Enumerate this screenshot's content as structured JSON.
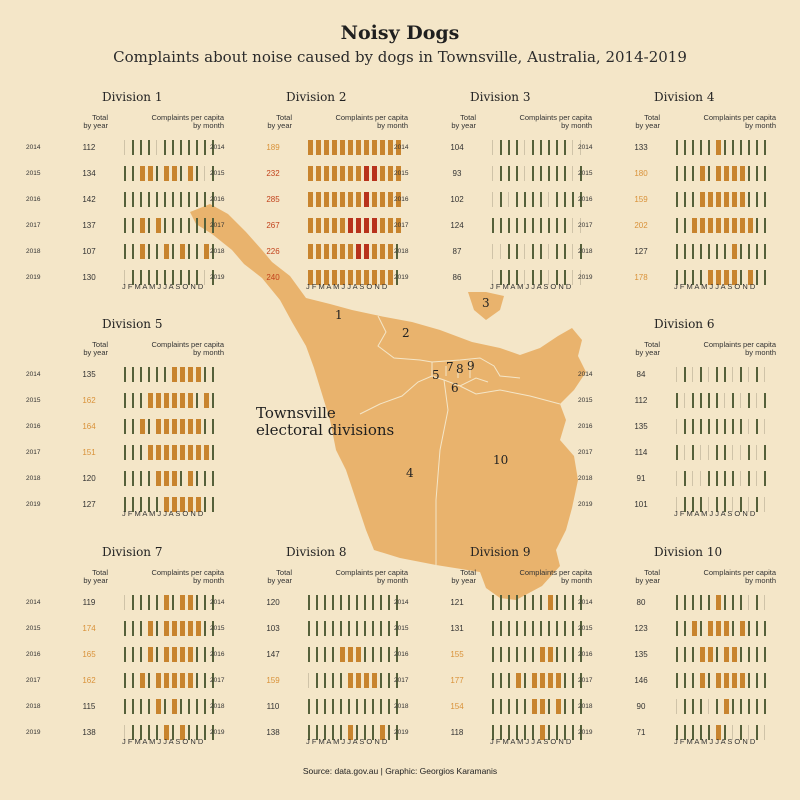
{
  "title": "Noisy Dogs",
  "subtitle": "Complaints about noise caused by dogs in Townsville, Australia, 2014-2019",
  "map_title_lines": [
    "Townsville",
    "electoral divisions"
  ],
  "source": "Source: data.gov.au | Graphic: Georgios Karamanis",
  "headers": {
    "total_line1": "Total",
    "total_line2": "by year",
    "rate_line1": "Complaints per capita",
    "rate_line2": "by month"
  },
  "month_axis": "J F M A M J J A S O N D",
  "colors": {
    "background": "#f4e6c8",
    "map_fill": "#e9b36d",
    "low": "#55603a",
    "mid": "#c8842e",
    "high": "#b8321c",
    "faint": "#cfc3a8",
    "total_normal": "#333333",
    "total_elevated": "#d9923a",
    "total_high": "#c2421c"
  },
  "chart_data": {
    "type": "heatmap",
    "x": [
      "J",
      "F",
      "M",
      "A",
      "M",
      "J",
      "J",
      "A",
      "S",
      "O",
      "N",
      "D"
    ],
    "years": [
      "2014",
      "2015",
      "2016",
      "2017",
      "2018",
      "2019"
    ],
    "legend_levels": [
      "low",
      "mid",
      "high"
    ],
    "divisions": [
      {
        "name": "Division 1",
        "label": "1",
        "totals": [
          112,
          134,
          142,
          137,
          107,
          130
        ],
        "total_levels": [
          "n",
          "n",
          "n",
          "n",
          "n",
          "n"
        ],
        "levels": [
          "011101111111",
          "112212212101",
          "111111111111",
          "112121111111",
          "112112121121",
          "011111111101"
        ]
      },
      {
        "name": "Division 2",
        "label": "2",
        "totals": [
          189,
          232,
          285,
          267,
          226,
          240
        ],
        "total_levels": [
          "e",
          "h",
          "h",
          "h",
          "h",
          "h"
        ],
        "levels": [
          "222233333332",
          "222233344322",
          "223333343332",
          "223334444332",
          "222333443321",
          "222233333321"
        ]
      },
      {
        "name": "Division 3",
        "label": "3",
        "totals": [
          104,
          93,
          102,
          124,
          87,
          86
        ],
        "total_levels": [
          "n",
          "n",
          "n",
          "n",
          "n",
          "n"
        ],
        "levels": [
          "011101111100",
          "011101111101",
          "010111101111",
          "111111111100",
          "001101101101",
          "011101101100"
        ]
      },
      {
        "name": "Division 4",
        "label": "4",
        "totals": [
          133,
          180,
          159,
          202,
          127,
          178
        ],
        "total_levels": [
          "n",
          "e",
          "e",
          "e",
          "n",
          "e"
        ],
        "levels": [
          "111112111111",
          "111212232111",
          "111222232111",
          "112223333211",
          "111111121111",
          "111122221211"
        ]
      },
      {
        "name": "Division 5",
        "label": "5",
        "totals": [
          135,
          162,
          164,
          151,
          120,
          127
        ],
        "total_levels": [
          "n",
          "e",
          "e",
          "e",
          "n",
          "n"
        ],
        "levels": [
          "111111222311",
          "111222222121",
          "112122223211",
          "111222222221",
          "111122212111",
          "111112222311"
        ]
      },
      {
        "name": "Division 6",
        "label": "6",
        "totals": [
          84,
          112,
          135,
          114,
          91,
          101
        ],
        "total_levels": [
          "n",
          "n",
          "n",
          "n",
          "n",
          "n"
        ],
        "levels": [
          "010101101010",
          "101111010101",
          "011111111010",
          "101001100101",
          "010011110101",
          "011101101010"
        ]
      },
      {
        "name": "Division 7",
        "label": "7",
        "totals": [
          119,
          174,
          165,
          162,
          115,
          138
        ],
        "total_levels": [
          "n",
          "e",
          "e",
          "e",
          "n",
          "n"
        ],
        "levels": [
          "011112122111",
          "111212222211",
          "111212222111",
          "112122222111",
          "111121211111",
          "011112121111"
        ]
      },
      {
        "name": "Division 8",
        "label": "8",
        "totals": [
          120,
          103,
          147,
          159,
          110,
          138
        ],
        "total_levels": [
          "n",
          "n",
          "n",
          "e",
          "n",
          "n"
        ],
        "levels": [
          "111111111111",
          "111111111111",
          "111122211111",
          "011112222111",
          "111111111111",
          "111112111211"
        ]
      },
      {
        "name": "Division 9",
        "label": "9",
        "totals": [
          121,
          131,
          155,
          177,
          154,
          118
        ],
        "total_levels": [
          "n",
          "n",
          "e",
          "e",
          "e",
          "n"
        ],
        "levels": [
          "111111121111",
          "111111111111",
          "111111221111",
          "111212222111",
          "111112212111",
          "111111211111"
        ]
      },
      {
        "name": "Division 10",
        "label": "10",
        "totals": [
          80,
          123,
          135,
          146,
          90,
          71
        ],
        "total_levels": [
          "n",
          "n",
          "n",
          "n",
          "n",
          "n"
        ],
        "levels": [
          "111112111010",
          "112122212111",
          "111221221111",
          "111212222111",
          "011101211111",
          "111112101010"
        ]
      }
    ]
  }
}
